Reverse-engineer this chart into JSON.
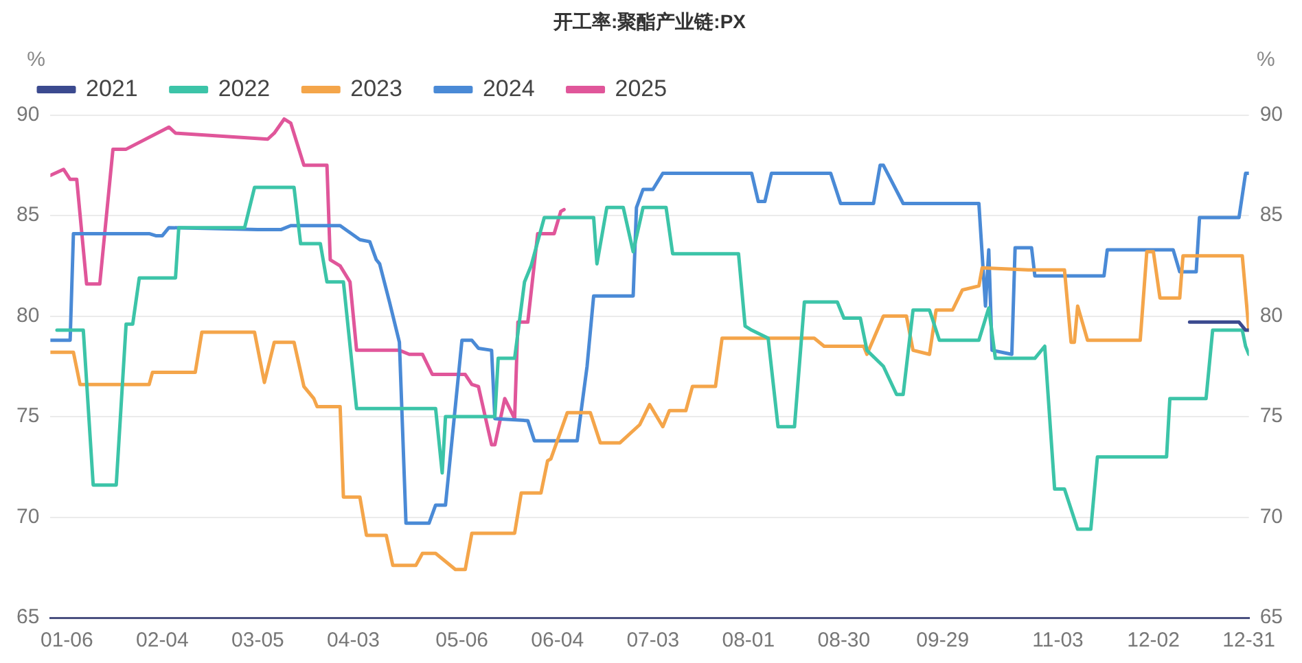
{
  "chart_data": {
    "type": "line",
    "title": "开工率:聚酯产业链:PX",
    "ylabel": "%",
    "y2label": "%",
    "legend": "top left",
    "grid": "y",
    "xlim": [
      "--01-01",
      "--12-31"
    ],
    "xticks": [
      {
        "value": "--01-06",
        "label": "01-06"
      },
      {
        "value": "--02-04",
        "label": "02-04"
      },
      {
        "value": "--03-05",
        "label": "03-05"
      },
      {
        "value": "--04-03",
        "label": "04-03"
      },
      {
        "value": "--05-06",
        "label": "05-06"
      },
      {
        "value": "--06-04",
        "label": "06-04"
      },
      {
        "value": "--07-03",
        "label": "07-03"
      },
      {
        "value": "--08-01",
        "label": "08-01"
      },
      {
        "value": "--08-30",
        "label": "08-30"
      },
      {
        "value": "--09-29",
        "label": "09-29"
      },
      {
        "value": "--11-03",
        "label": "11-03"
      },
      {
        "value": "--12-02",
        "label": "12-02"
      },
      {
        "value": "--12-31",
        "label": "12-31"
      }
    ],
    "ylim": [
      65,
      90
    ],
    "yticks": [
      65,
      70,
      75,
      80,
      85,
      90
    ],
    "y2lim": [
      65,
      90
    ],
    "y2ticks": [
      65,
      70,
      75,
      80,
      85,
      90
    ],
    "series": [
      {
        "name": "2021",
        "color": "#3b4a8f",
        "x": [
          "--12-13",
          "--12-28",
          "--12-30",
          "--12-31"
        ],
        "values": [
          79.7,
          79.7,
          79.3,
          79.3
        ]
      },
      {
        "name": "2022",
        "color": "#3cc4a8",
        "x": [
          "--01-03",
          "--01-11",
          "--01-14",
          "--01-21",
          "--01-24",
          "--01-26",
          "--01-28",
          "--02-08",
          "--02-09",
          "--03-01",
          "--03-04",
          "--03-16",
          "--03-18",
          "--03-24",
          "--03-26",
          "--03-31",
          "--04-04",
          "--04-28",
          "--04-30",
          "--05-01",
          "--05-16",
          "--05-17",
          "--05-22",
          "--05-25",
          "--05-27",
          "--05-31",
          "--06-15",
          "--06-16",
          "--06-19",
          "--06-24",
          "--06-27",
          "--06-30",
          "--07-07",
          "--07-09",
          "--07-29",
          "--07-31",
          "--08-02",
          "--08-07",
          "--08-10",
          "--08-15",
          "--08-18",
          "--08-28",
          "--08-30",
          "--09-04",
          "--09-06",
          "--09-11",
          "--09-15",
          "--09-17",
          "--09-20",
          "--09-25",
          "--09-28",
          "--10-10",
          "--10-13",
          "--10-15",
          "--10-27",
          "--10-30",
          "--11-02",
          "--11-05",
          "--11-09",
          "--11-13",
          "--11-15",
          "--12-06",
          "--12-07",
          "--12-18",
          "--12-20",
          "--12-29",
          "--12-30",
          "--12-31"
        ],
        "values": [
          79.3,
          79.3,
          71.6,
          71.6,
          79.6,
          79.6,
          81.9,
          81.9,
          84.4,
          84.4,
          86.4,
          86.4,
          83.6,
          83.6,
          81.7,
          81.7,
          75.4,
          75.4,
          72.2,
          75.0,
          75.0,
          77.9,
          77.9,
          81.7,
          82.5,
          84.9,
          84.9,
          82.6,
          85.4,
          85.4,
          83.2,
          85.4,
          85.4,
          83.1,
          83.1,
          79.5,
          79.3,
          78.9,
          74.5,
          74.5,
          80.7,
          80.7,
          79.9,
          79.9,
          78.3,
          77.5,
          76.1,
          76.1,
          80.3,
          80.3,
          78.8,
          78.8,
          80.4,
          77.9,
          77.9,
          78.5,
          71.4,
          71.4,
          69.4,
          69.4,
          73.0,
          73.0,
          75.9,
          75.9,
          79.3,
          79.3,
          78.5,
          78.1
        ]
      },
      {
        "name": "2023",
        "color": "#f4a54a",
        "x": [
          "--01-01",
          "--01-08",
          "--01-10",
          "--01-31",
          "--02-01",
          "--02-14",
          "--02-16",
          "--03-04",
          "--03-07",
          "--03-10",
          "--03-16",
          "--03-19",
          "--03-22",
          "--03-23",
          "--03-30",
          "--03-31",
          "--04-05",
          "--04-07",
          "--04-13",
          "--04-15",
          "--04-22",
          "--04-24",
          "--04-28",
          "--05-04",
          "--05-07",
          "--05-09",
          "--05-22",
          "--05-24",
          "--05-30",
          "--06-01",
          "--06-02",
          "--06-07",
          "--06-14",
          "--06-17",
          "--06-23",
          "--06-29",
          "--07-02",
          "--07-06",
          "--07-08",
          "--07-13",
          "--07-15",
          "--07-22",
          "--07-24",
          "--08-21",
          "--08-24",
          "--09-05",
          "--09-06",
          "--09-11",
          "--09-18",
          "--09-20",
          "--09-25",
          "--09-27",
          "--10-02",
          "--10-05",
          "--10-10",
          "--10-11",
          "--10-25",
          "--11-05",
          "--11-07",
          "--11-08",
          "--11-09",
          "--11-12",
          "--11-28",
          "--11-30",
          "--12-02",
          "--12-04",
          "--12-10",
          "--12-11",
          "--12-29",
          "--12-31"
        ],
        "values": [
          78.2,
          78.2,
          76.6,
          76.6,
          77.2,
          77.2,
          79.2,
          79.2,
          76.7,
          78.7,
          78.7,
          76.5,
          75.9,
          75.5,
          75.5,
          71.0,
          71.0,
          69.1,
          69.1,
          67.6,
          67.6,
          68.2,
          68.2,
          67.4,
          67.4,
          69.2,
          69.2,
          71.2,
          71.2,
          72.8,
          72.9,
          75.2,
          75.2,
          73.7,
          73.7,
          74.6,
          75.6,
          74.5,
          75.3,
          75.3,
          76.5,
          76.5,
          78.9,
          78.9,
          78.5,
          78.5,
          78.1,
          80.0,
          80.0,
          78.3,
          78.1,
          80.3,
          80.3,
          81.3,
          81.5,
          82.4,
          82.3,
          82.3,
          78.7,
          78.7,
          80.5,
          78.8,
          78.8,
          83.2,
          83.2,
          80.9,
          80.9,
          83.0,
          83.0,
          79.3
        ]
      },
      {
        "name": "2024",
        "color": "#4a8ad6",
        "x": [
          "--01-01",
          "--01-07",
          "--01-08",
          "--01-31",
          "--02-02",
          "--02-04",
          "--02-06",
          "--03-05",
          "--03-12",
          "--03-15",
          "--03-30",
          "--04-05",
          "--04-08",
          "--04-10",
          "--04-11",
          "--04-14",
          "--04-17",
          "--04-19",
          "--04-26",
          "--04-28",
          "--05-01",
          "--05-06",
          "--05-09",
          "--05-11",
          "--05-15",
          "--05-16",
          "--05-26",
          "--05-28",
          "--06-10",
          "--06-13",
          "--06-15",
          "--06-27",
          "--06-28",
          "--06-30",
          "--07-03",
          "--07-06",
          "--08-02",
          "--08-04",
          "--08-06",
          "--08-08",
          "--08-26",
          "--08-29",
          "--09-08",
          "--09-10",
          "--09-11",
          "--09-17",
          "--10-10",
          "--10-12",
          "--10-13",
          "--10-14",
          "--10-20",
          "--10-21",
          "--10-26",
          "--10-27",
          "--11-17",
          "--11-18",
          "--12-08",
          "--12-10",
          "--12-15",
          "--12-16",
          "--12-28",
          "--12-30",
          "--12-31"
        ],
        "values": [
          78.8,
          78.8,
          84.1,
          84.1,
          84.0,
          84.0,
          84.4,
          84.3,
          84.3,
          84.5,
          84.5,
          83.8,
          83.7,
          82.8,
          82.6,
          80.7,
          78.7,
          69.7,
          69.7,
          70.6,
          70.6,
          78.8,
          78.8,
          78.4,
          78.3,
          74.9,
          74.8,
          73.8,
          73.8,
          77.5,
          81.0,
          81.0,
          85.4,
          86.3,
          86.3,
          87.1,
          87.1,
          85.7,
          85.7,
          87.1,
          87.1,
          85.6,
          85.6,
          87.5,
          87.5,
          85.6,
          85.6,
          80.5,
          83.3,
          78.3,
          78.1,
          83.4,
          83.4,
          82.0,
          82.0,
          83.3,
          83.3,
          82.2,
          82.2,
          84.9,
          84.9,
          87.1,
          87.1
        ]
      },
      {
        "name": "2025",
        "color": "#e0569a",
        "x": [
          "--01-01",
          "--01-05",
          "--01-07",
          "--01-09",
          "--01-12",
          "--01-16",
          "--01-20",
          "--01-24",
          "--02-06",
          "--02-08",
          "--03-08",
          "--03-10",
          "--03-13",
          "--03-15",
          "--03-19",
          "--03-26",
          "--03-27",
          "--03-30",
          "--04-02",
          "--04-04",
          "--04-17",
          "--04-20",
          "--04-24",
          "--04-27",
          "--05-07",
          "--05-09",
          "--05-11",
          "--05-15",
          "--05-16",
          "--05-19",
          "--05-22",
          "--05-23",
          "--05-26",
          "--05-29",
          "--06-03",
          "--06-05",
          "--06-06"
        ],
        "values": [
          87.0,
          87.3,
          86.8,
          86.8,
          81.6,
          81.6,
          88.3,
          88.3,
          89.4,
          89.1,
          88.8,
          89.1,
          89.8,
          89.6,
          87.5,
          87.5,
          82.8,
          82.5,
          81.7,
          78.3,
          78.3,
          78.1,
          78.1,
          77.1,
          77.1,
          76.6,
          76.5,
          73.6,
          73.6,
          75.9,
          74.9,
          79.7,
          79.7,
          84.1,
          84.1,
          85.2,
          85.3
        ]
      }
    ]
  }
}
